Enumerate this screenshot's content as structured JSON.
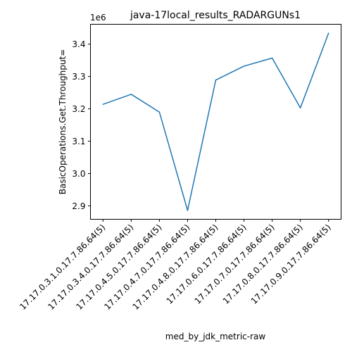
{
  "chart_data": {
    "type": "line",
    "title": "java-17local_results_RADARGUNs1",
    "xlabel": "med_by_jdk_metric-raw",
    "ylabel": "BasicOperations.Get.Throughput=",
    "y_multiplier_label": "1e6",
    "categories": [
      "17.17.0.3.1.0.17.7.86.64(5)",
      "17.17.0.3.4.0.17.7.86.64(5)",
      "17.17.0.4.5.0.17.7.86.64(5)",
      "17.17.0.4.7.0.17.7.86.64(5)",
      "17.17.0.4.8.0.17.7.86.64(5)",
      "17.17.0.6.0.17.7.86.64(5)",
      "17.17.0.7.0.17.7.86.64(5)",
      "17.17.0.8.0.17.7.86.64(5)",
      "17.17.0.9.0.17.7.86.64(5)"
    ],
    "series": [
      {
        "values": [
          3214000,
          3245000,
          3190000,
          2886000,
          3289000,
          3332000,
          3357000,
          3203000,
          3434000
        ],
        "color": "#1f77b4"
      }
    ],
    "yticks": [
      2.9,
      3.0,
      3.1,
      3.2,
      3.3,
      3.4
    ],
    "ytick_labels": [
      "2.9",
      "3.0",
      "3.1",
      "3.2",
      "3.3",
      "3.4"
    ],
    "ylim": [
      2.8586,
      3.4614
    ],
    "grid": false,
    "legend": "none"
  }
}
